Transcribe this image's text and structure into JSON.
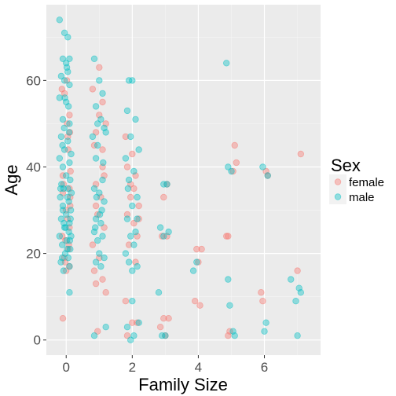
{
  "chart_data": {
    "type": "scatter",
    "xlabel": "Family Size",
    "ylabel": "Age",
    "xlim": [
      -0.6,
      7.7
    ],
    "ylim": [
      -3.5,
      77.5
    ],
    "x_ticks": [
      0,
      2,
      4,
      6
    ],
    "y_ticks": [
      0,
      20,
      40,
      60
    ],
    "grid": true,
    "legend": {
      "title": "Sex",
      "placement": "right"
    },
    "series": [
      {
        "name": "female",
        "color": "#F8766D",
        "points": [
          [
            -0.1,
            5
          ],
          [
            0.1,
            52
          ],
          [
            -0.05,
            57
          ],
          [
            0.05,
            47
          ],
          [
            -0.1,
            38
          ],
          [
            0.12,
            33
          ],
          [
            0.0,
            30
          ],
          [
            0.1,
            26
          ],
          [
            -0.12,
            24
          ],
          [
            0.08,
            22
          ],
          [
            -0.06,
            19
          ],
          [
            0.1,
            17
          ],
          [
            0.0,
            16
          ],
          [
            0.06,
            44
          ],
          [
            -0.08,
            36
          ],
          [
            0.04,
            28
          ],
          [
            0.11,
            48
          ],
          [
            -0.13,
            58
          ],
          [
            0.02,
            60
          ],
          [
            0.13,
            39
          ],
          [
            -0.03,
            18
          ],
          [
            0.07,
            21
          ],
          [
            0.12,
            31
          ],
          [
            -0.1,
            34
          ],
          [
            0.03,
            50
          ],
          [
            0.1,
            35
          ],
          [
            -0.02,
            23
          ],
          [
            0.8,
            58
          ],
          [
            1.0,
            63
          ],
          [
            1.1,
            55
          ],
          [
            0.9,
            48
          ],
          [
            1.2,
            50
          ],
          [
            0.85,
            45
          ],
          [
            1.1,
            40
          ],
          [
            0.9,
            36
          ],
          [
            1.05,
            33
          ],
          [
            0.95,
            29
          ],
          [
            1.15,
            26
          ],
          [
            0.8,
            22
          ],
          [
            1.0,
            19
          ],
          [
            0.85,
            16
          ],
          [
            1.1,
            14
          ],
          [
            0.9,
            13
          ],
          [
            1.2,
            11
          ],
          [
            0.95,
            2
          ],
          [
            1.0,
            52
          ],
          [
            1.1,
            44
          ],
          [
            0.9,
            31
          ],
          [
            1.15,
            38
          ],
          [
            1.8,
            47
          ],
          [
            2.0,
            43
          ],
          [
            1.85,
            40
          ],
          [
            2.1,
            38
          ],
          [
            1.95,
            36
          ],
          [
            2.2,
            31
          ],
          [
            1.85,
            29
          ],
          [
            2.05,
            27
          ],
          [
            2.15,
            24
          ],
          [
            1.9,
            22
          ],
          [
            2.1,
            18
          ],
          [
            1.8,
            9
          ],
          [
            2.0,
            4
          ],
          [
            2.15,
            4
          ],
          [
            1.85,
            1
          ],
          [
            2.05,
            35
          ],
          [
            1.95,
            33
          ],
          [
            2.2,
            28
          ],
          [
            2.85,
            3
          ],
          [
            2.95,
            5
          ],
          [
            3.1,
            5
          ],
          [
            3.0,
            1
          ],
          [
            2.9,
            24
          ],
          [
            3.05,
            24
          ],
          [
            2.95,
            33
          ],
          [
            3.05,
            36
          ],
          [
            3.9,
            9
          ],
          [
            4.0,
            18
          ],
          [
            4.1,
            21
          ],
          [
            3.95,
            21
          ],
          [
            4.05,
            8
          ],
          [
            4.85,
            24
          ],
          [
            4.9,
            24
          ],
          [
            5.1,
            45
          ],
          [
            5.05,
            39
          ],
          [
            5.15,
            41
          ],
          [
            4.95,
            2
          ],
          [
            4.9,
            1
          ],
          [
            5.9,
            11
          ],
          [
            5.95,
            9
          ],
          [
            6.05,
            39
          ],
          [
            6.1,
            38
          ],
          [
            7.0,
            16
          ],
          [
            7.1,
            43
          ]
        ]
      },
      {
        "name": "male",
        "color": "#00BFC4",
        "points": [
          [
            -0.2,
            74
          ],
          [
            -0.05,
            71
          ],
          [
            0.05,
            70
          ],
          [
            -0.1,
            65
          ],
          [
            0.0,
            64
          ],
          [
            0.1,
            65
          ],
          [
            -0.15,
            61
          ],
          [
            0.05,
            62
          ],
          [
            -0.05,
            60
          ],
          [
            0.1,
            59
          ],
          [
            -0.2,
            56
          ],
          [
            0.0,
            55
          ],
          [
            -0.1,
            51
          ],
          [
            0.1,
            50
          ],
          [
            -0.15,
            47
          ],
          [
            0.05,
            46
          ],
          [
            -0.05,
            44
          ],
          [
            0.15,
            43
          ],
          [
            -0.2,
            42
          ],
          [
            -0.1,
            40
          ],
          [
            0.0,
            38
          ],
          [
            0.12,
            37
          ],
          [
            -0.08,
            35
          ],
          [
            0.05,
            35
          ],
          [
            -0.18,
            33
          ],
          [
            0.08,
            32
          ],
          [
            -0.1,
            30
          ],
          [
            0.14,
            30
          ],
          [
            0.0,
            29
          ],
          [
            -0.15,
            28
          ],
          [
            0.1,
            27
          ],
          [
            -0.05,
            26
          ],
          [
            0.08,
            25
          ],
          [
            -0.2,
            24
          ],
          [
            0.02,
            23
          ],
          [
            -0.12,
            22
          ],
          [
            0.12,
            21
          ],
          [
            -0.03,
            20
          ],
          [
            0.06,
            19
          ],
          [
            -0.16,
            18
          ],
          [
            0.1,
            17
          ],
          [
            -0.08,
            16
          ],
          [
            0.1,
            11
          ],
          [
            -0.1,
            31
          ],
          [
            0.04,
            33
          ],
          [
            -0.14,
            36
          ],
          [
            0.1,
            41
          ],
          [
            -0.06,
            49
          ],
          [
            0.07,
            54
          ],
          [
            -0.02,
            26
          ],
          [
            0.15,
            24
          ],
          [
            -0.12,
            19
          ],
          [
            0.03,
            21
          ],
          [
            0.13,
            28
          ],
          [
            -0.17,
            35
          ],
          [
            0.09,
            48
          ],
          [
            -0.04,
            56
          ],
          [
            0.02,
            63
          ],
          [
            -0.11,
            45
          ],
          [
            0.16,
            34
          ],
          [
            -0.07,
            27
          ],
          [
            0.11,
            23
          ],
          [
            0.85,
            65
          ],
          [
            1.0,
            60
          ],
          [
            1.1,
            57
          ],
          [
            0.9,
            54
          ],
          [
            1.05,
            51
          ],
          [
            1.15,
            49
          ],
          [
            0.95,
            50
          ],
          [
            0.8,
            47
          ],
          [
            1.2,
            48
          ],
          [
            0.9,
            42
          ],
          [
            1.1,
            37
          ],
          [
            0.85,
            35
          ],
          [
            1.0,
            34
          ],
          [
            1.15,
            32
          ],
          [
            0.9,
            28
          ],
          [
            1.05,
            27
          ],
          [
            0.85,
            25
          ],
          [
            1.1,
            24
          ],
          [
            0.95,
            23
          ],
          [
            1.0,
            20
          ],
          [
            1.15,
            19
          ],
          [
            0.9,
            18
          ],
          [
            1.05,
            17
          ],
          [
            0.85,
            1
          ],
          [
            1.2,
            3
          ],
          [
            0.95,
            45
          ],
          [
            1.08,
            30
          ],
          [
            0.88,
            26
          ],
          [
            1.12,
            41
          ],
          [
            0.92,
            33
          ],
          [
            1.02,
            29
          ],
          [
            1.9,
            60
          ],
          [
            2.0,
            60
          ],
          [
            1.85,
            53
          ],
          [
            2.1,
            51
          ],
          [
            1.95,
            47
          ],
          [
            2.2,
            44
          ],
          [
            1.8,
            42
          ],
          [
            2.05,
            39
          ],
          [
            1.9,
            37
          ],
          [
            2.15,
            33
          ],
          [
            2.0,
            31
          ],
          [
            1.85,
            28
          ],
          [
            2.1,
            25
          ],
          [
            1.95,
            24
          ],
          [
            2.05,
            22
          ],
          [
            1.8,
            20
          ],
          [
            2.15,
            17
          ],
          [
            1.9,
            18
          ],
          [
            2.0,
            16
          ],
          [
            2.2,
            4
          ],
          [
            1.85,
            3
          ],
          [
            2.05,
            1
          ],
          [
            1.95,
            0
          ],
          [
            2.0,
            9
          ],
          [
            2.15,
            28
          ],
          [
            1.87,
            35
          ],
          [
            2.8,
            11
          ],
          [
            2.85,
            26
          ],
          [
            2.95,
            36
          ],
          [
            3.05,
            36
          ],
          [
            3.1,
            25
          ],
          [
            2.9,
            1
          ],
          [
            3.0,
            1
          ],
          [
            2.95,
            24
          ],
          [
            3.85,
            16
          ],
          [
            3.95,
            18
          ],
          [
            4.85,
            64
          ],
          [
            4.9,
            40
          ],
          [
            4.9,
            14
          ],
          [
            4.95,
            8
          ],
          [
            5.05,
            2
          ],
          [
            5.1,
            1
          ],
          [
            5.0,
            39
          ],
          [
            5.95,
            40
          ],
          [
            6.0,
            2
          ],
          [
            6.05,
            4
          ],
          [
            6.1,
            38
          ],
          [
            6.8,
            14
          ],
          [
            6.95,
            9
          ],
          [
            7.0,
            1
          ],
          [
            7.1,
            11
          ],
          [
            7.05,
            12
          ]
        ]
      }
    ]
  }
}
